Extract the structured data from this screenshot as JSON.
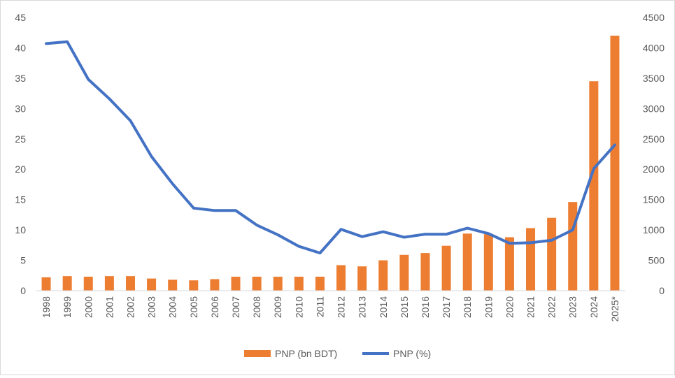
{
  "chart_data": {
    "type": "bar",
    "title": "",
    "xlabel": "",
    "ylabel": "",
    "ylabel_right": "",
    "categories": [
      "1998",
      "1999",
      "2000",
      "2001",
      "2002",
      "2003",
      "2004",
      "2005",
      "2006",
      "2007",
      "2008",
      "2009",
      "2010",
      "2011",
      "2012",
      "2013",
      "2014",
      "2015",
      "2016",
      "2017",
      "2018",
      "2019",
      "2020",
      "2021",
      "2022",
      "2023",
      "2024",
      "2025*"
    ],
    "series": [
      {
        "name": "PNP (bn BDT)",
        "type": "bar",
        "axis": "left",
        "color": "#ED7D31",
        "values": [
          2.2,
          2.4,
          2.3,
          2.4,
          2.4,
          2.0,
          1.8,
          1.7,
          1.9,
          2.3,
          2.3,
          2.3,
          2.3,
          2.3,
          4.2,
          4.0,
          5.0,
          5.9,
          6.2,
          7.4,
          9.4,
          9.3,
          8.8,
          10.3,
          12.0,
          14.6,
          34.5,
          42.0
        ]
      },
      {
        "name": "PNP (%)",
        "type": "line",
        "axis": "right",
        "color": "#4472C4",
        "values": [
          4070,
          4100,
          3480,
          3160,
          2800,
          2210,
          1760,
          1360,
          1320,
          1320,
          1080,
          920,
          730,
          620,
          1010,
          890,
          970,
          880,
          930,
          930,
          1030,
          940,
          780,
          790,
          830,
          1000,
          2010,
          2400
        ]
      }
    ],
    "yaxis_left": {
      "min": 0,
      "max": 45,
      "ticks": [
        "0",
        "5",
        "10",
        "15",
        "20",
        "25",
        "30",
        "35",
        "40",
        "45"
      ]
    },
    "yaxis_right": {
      "min": 0,
      "max": 4500,
      "ticks": [
        "0",
        "500",
        "1000",
        "1500",
        "2000",
        "2500",
        "3000",
        "3500",
        "4000",
        "4500"
      ]
    },
    "grid": false,
    "legend": "bottom",
    "legend_items": [
      "PNP (bn BDT)",
      "PNP (%)"
    ]
  }
}
